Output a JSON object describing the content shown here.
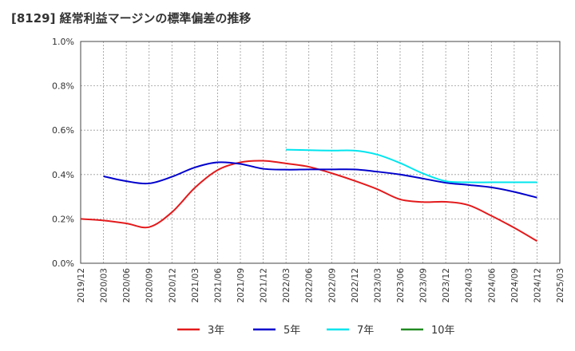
{
  "chart_data": {
    "type": "line",
    "title": "[8129]  経常利益マージンの標準偏差の推移",
    "y_ticks": [
      "0.0%",
      "0.2%",
      "0.4%",
      "0.6%",
      "0.8%",
      "1.0%"
    ],
    "ylim": [
      0,
      1.0
    ],
    "x_ticks": [
      "2019/12",
      "2020/03",
      "2020/06",
      "2020/09",
      "2020/12",
      "2021/03",
      "2021/06",
      "2021/09",
      "2021/12",
      "2022/03",
      "2022/06",
      "2022/09",
      "2022/12",
      "2023/03",
      "2023/06",
      "2023/09",
      "2023/12",
      "2024/03",
      "2024/06",
      "2024/09",
      "2024/12",
      "2025/03"
    ],
    "grid": true,
    "legend_position": "bottom",
    "series": [
      {
        "name": "3年",
        "color": "#e31a1c",
        "values": [
          0.2,
          0.193,
          0.18,
          0.163,
          0.23,
          0.34,
          0.42,
          0.455,
          0.462,
          0.45,
          0.435,
          0.406,
          0.372,
          0.334,
          0.288,
          0.276,
          0.277,
          0.262,
          0.214,
          0.16,
          0.1,
          null
        ]
      },
      {
        "name": "5年",
        "color": "#0000cc",
        "values": [
          null,
          0.392,
          0.37,
          0.36,
          0.39,
          0.432,
          0.455,
          0.448,
          0.426,
          0.422,
          0.423,
          0.423,
          0.423,
          0.413,
          0.4,
          0.382,
          0.363,
          0.353,
          0.342,
          0.322,
          0.296,
          null
        ]
      },
      {
        "name": "7年",
        "color": "#00e5ee",
        "values": [
          null,
          null,
          null,
          null,
          null,
          null,
          null,
          null,
          null,
          0.512,
          0.51,
          0.508,
          0.508,
          0.49,
          0.452,
          0.405,
          0.37,
          0.365,
          0.365,
          0.365,
          0.365,
          null
        ]
      },
      {
        "name": "10年",
        "color": "#228b22",
        "values": [
          null,
          null,
          null,
          null,
          null,
          null,
          null,
          null,
          null,
          null,
          null,
          null,
          null,
          null,
          null,
          null,
          null,
          null,
          null,
          null,
          null,
          null
        ]
      }
    ]
  }
}
